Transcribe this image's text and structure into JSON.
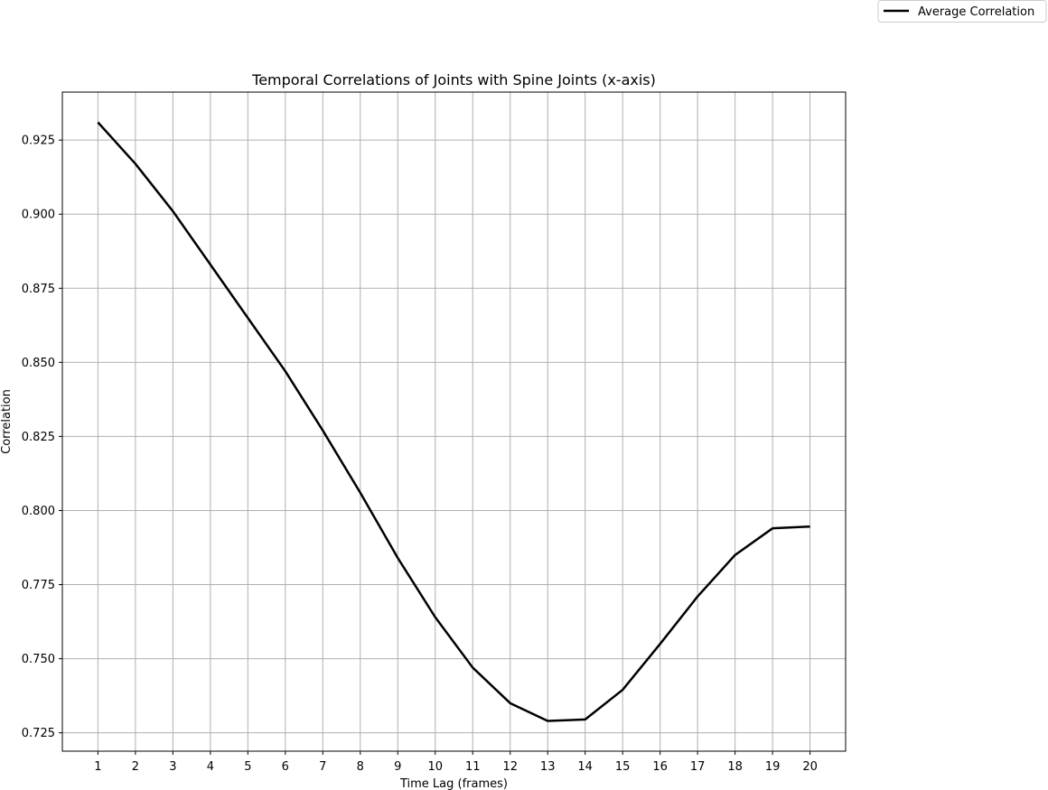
{
  "chart_data": {
    "type": "line",
    "title": "Temporal Correlations of Joints with Spine Joints (x-axis)",
    "xlabel": "Time Lag (frames)",
    "ylabel": "Correlation",
    "x": [
      1,
      2,
      3,
      4,
      5,
      6,
      7,
      8,
      9,
      10,
      11,
      12,
      13,
      14,
      15,
      16,
      17,
      18,
      19,
      20
    ],
    "x_tick_labels": [
      "1",
      "2",
      "3",
      "4",
      "5",
      "6",
      "7",
      "8",
      "9",
      "10",
      "11",
      "12",
      "13",
      "14",
      "15",
      "16",
      "17",
      "18",
      "19",
      "20"
    ],
    "y_ticks": [
      0.725,
      0.75,
      0.775,
      0.8,
      0.825,
      0.85,
      0.875,
      0.9,
      0.925
    ],
    "y_tick_labels": [
      "0.725",
      "0.750",
      "0.775",
      "0.800",
      "0.825",
      "0.850",
      "0.875",
      "0.900",
      "0.925"
    ],
    "xlim": [
      0.05,
      20.95
    ],
    "ylim": [
      0.7188,
      0.9412
    ],
    "grid": true,
    "legend_position": "top-right (outside the plot)",
    "series": [
      {
        "name": "Average Correlation",
        "color": "#000000",
        "values": [
          0.931,
          0.917,
          0.901,
          0.883,
          0.865,
          0.847,
          0.827,
          0.806,
          0.784,
          0.764,
          0.747,
          0.735,
          0.729,
          0.7295,
          0.7395,
          0.755,
          0.771,
          0.785,
          0.794,
          0.7946
        ]
      }
    ]
  }
}
